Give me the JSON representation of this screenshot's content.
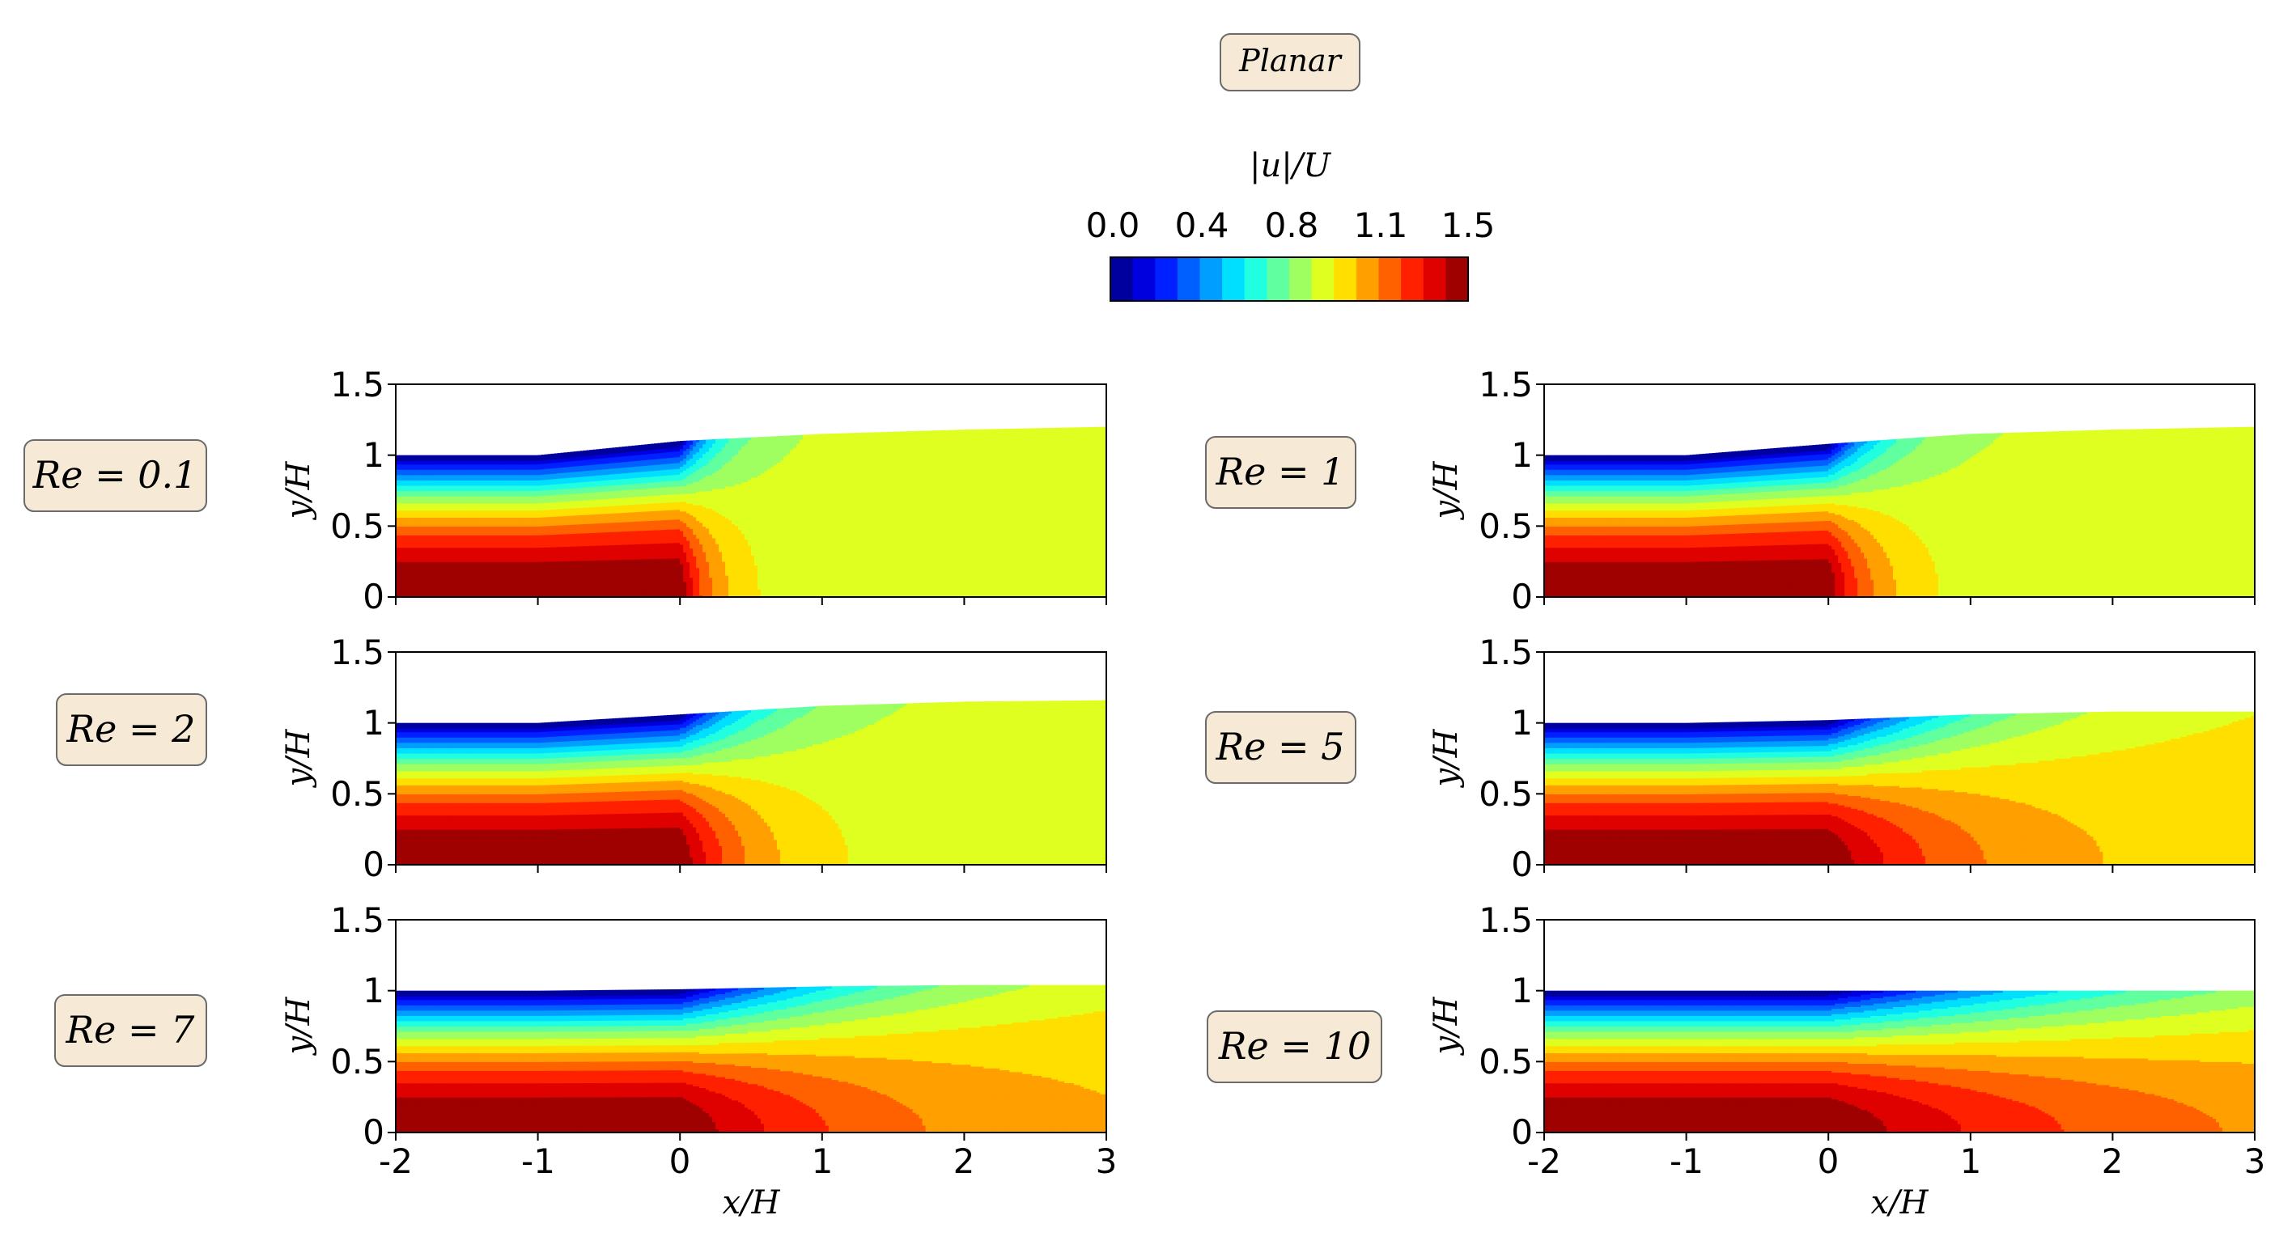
{
  "figure": {
    "title_box": "Planar",
    "colorbar": {
      "label": "|u|/U",
      "ticks": [
        "0.0",
        "0.4",
        "0.8",
        "1.1",
        "1.5"
      ],
      "range": [
        0.0,
        1.5
      ],
      "levels": 16,
      "colormap": "jet"
    },
    "xlabel": "x/H",
    "ylabel": "y/H"
  },
  "chart_data": {
    "type": "heatmap",
    "title": "Planar",
    "xlim": [
      -2,
      3
    ],
    "ylim": [
      0,
      1.5
    ],
    "xticks": [
      "-2",
      "-1",
      "0",
      "1",
      "2",
      "3"
    ],
    "yticks": [
      "0",
      "0.5",
      "1",
      "1.5"
    ],
    "xlabel": "x/H",
    "ylabel": "y/H",
    "colorbar_label": "|u|/U",
    "colorbar_range": [
      0.0,
      1.5
    ],
    "panels": [
      {
        "label": "Re = 0.1",
        "far_field_speed": 0.87,
        "free_surface_height": [
          1.0,
          1.0,
          1.1,
          1.15,
          1.18,
          1.2
        ],
        "core_decay_length": 0.25
      },
      {
        "label": "Re = 1",
        "far_field_speed": 0.87,
        "free_surface_height": [
          1.0,
          1.0,
          1.08,
          1.15,
          1.18,
          1.2
        ],
        "core_decay_length": 0.35
      },
      {
        "label": "Re = 2",
        "far_field_speed": 0.88,
        "free_surface_height": [
          1.0,
          1.0,
          1.06,
          1.12,
          1.15,
          1.16
        ],
        "core_decay_length": 0.5
      },
      {
        "label": "Re = 5",
        "far_field_speed": 0.97,
        "free_surface_height": [
          1.0,
          1.0,
          1.02,
          1.06,
          1.08,
          1.08
        ],
        "core_decay_length": 0.9
      },
      {
        "label": "Re = 7",
        "far_field_speed": 0.99,
        "free_surface_height": [
          1.0,
          1.0,
          1.01,
          1.03,
          1.04,
          1.04
        ],
        "core_decay_length": 1.3
      },
      {
        "label": "Re = 10",
        "far_field_speed": 1.0,
        "free_surface_height": [
          1.0,
          1.0,
          1.0,
          1.0,
          1.0,
          1.0
        ],
        "core_decay_length": 2.0
      }
    ]
  }
}
